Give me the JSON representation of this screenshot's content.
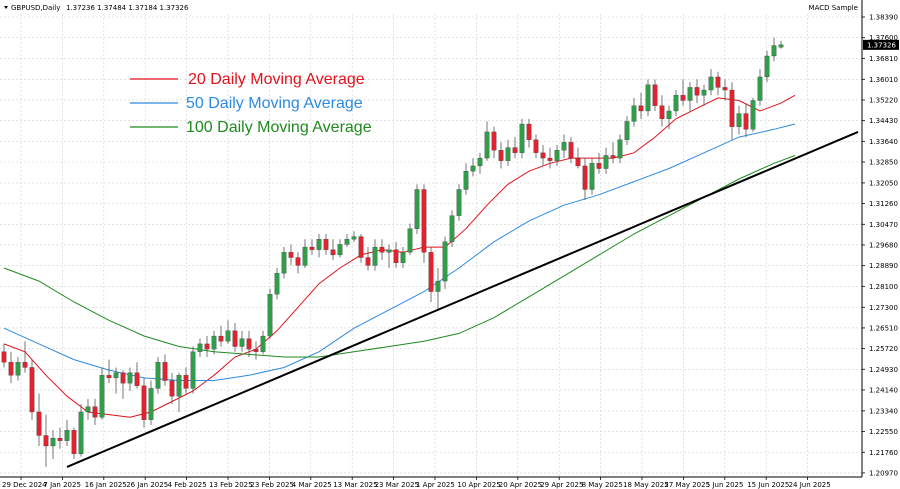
{
  "header": {
    "symbol_label": "GBPUSD,Daily",
    "ohlc": "1.37236 1.37484 1.37184 1.37326",
    "indicator": "MACD Sample"
  },
  "colors": {
    "bull": "#2e9e48",
    "bear": "#e0232f",
    "ma20": "#e2121b",
    "ma50": "#2d8be0",
    "ma100": "#1f8a1f",
    "trendline": "#000000",
    "grid": "#d0d0d0",
    "price_tag_bg": "#000000"
  },
  "chart_data": {
    "type": "candlestick",
    "title": "",
    "ylim": [
      1.207,
      1.3839
    ],
    "y_ticks": [
      "1.38390",
      "1.37600",
      "1.36810",
      "1.36010",
      "1.35220",
      "1.34430",
      "1.33640",
      "1.32850",
      "1.32050",
      "1.31260",
      "1.30470",
      "1.29680",
      "1.28890",
      "1.28100",
      "1.27300",
      "1.26510",
      "1.25720",
      "1.24930",
      "1.24140",
      "1.23340",
      "1.22550",
      "1.21760",
      "1.20970"
    ],
    "x_ticks": [
      "29 Dec 2024",
      "7 Jan 2025",
      "16 Jan 2025",
      "26 Jan 2025",
      "4 Feb 2025",
      "13 Feb 2025",
      "23 Feb 2025",
      "4 Mar 2025",
      "13 Mar 2025",
      "23 Mar 2025",
      "1 Apr 2025",
      "10 Apr 2025",
      "20 Apr 2025",
      "29 Apr 2025",
      "8 May 2025",
      "18 May 2025",
      "27 May 2025",
      "5 Jun 2025",
      "15 Jun 2025",
      "24 Jun 2025"
    ],
    "current_price": "1.37326",
    "grid": true,
    "legend_position": "top-left",
    "legend": [
      "20 Daily Moving Average",
      "50 Daily Moving Average",
      "100 Daily Moving Average"
    ],
    "candles": [
      {
        "o": 1.256,
        "h": 1.259,
        "l": 1.25,
        "c": 1.252
      },
      {
        "o": 1.252,
        "h": 1.256,
        "l": 1.244,
        "c": 1.247
      },
      {
        "o": 1.247,
        "h": 1.254,
        "l": 1.245,
        "c": 1.252
      },
      {
        "o": 1.252,
        "h": 1.26,
        "l": 1.248,
        "c": 1.25
      },
      {
        "o": 1.25,
        "h": 1.253,
        "l": 1.23,
        "c": 1.233
      },
      {
        "o": 1.233,
        "h": 1.24,
        "l": 1.22,
        "c": 1.224
      },
      {
        "o": 1.224,
        "h": 1.232,
        "l": 1.212,
        "c": 1.22
      },
      {
        "o": 1.22,
        "h": 1.226,
        "l": 1.215,
        "c": 1.223
      },
      {
        "o": 1.223,
        "h": 1.227,
        "l": 1.219,
        "c": 1.222
      },
      {
        "o": 1.222,
        "h": 1.23,
        "l": 1.22,
        "c": 1.226
      },
      {
        "o": 1.226,
        "h": 1.227,
        "l": 1.215,
        "c": 1.217
      },
      {
        "o": 1.217,
        "h": 1.236,
        "l": 1.216,
        "c": 1.233
      },
      {
        "o": 1.233,
        "h": 1.238,
        "l": 1.23,
        "c": 1.235
      },
      {
        "o": 1.235,
        "h": 1.238,
        "l": 1.228,
        "c": 1.231
      },
      {
        "o": 1.231,
        "h": 1.25,
        "l": 1.23,
        "c": 1.247
      },
      {
        "o": 1.247,
        "h": 1.253,
        "l": 1.244,
        "c": 1.246
      },
      {
        "o": 1.246,
        "h": 1.25,
        "l": 1.24,
        "c": 1.248
      },
      {
        "o": 1.248,
        "h": 1.249,
        "l": 1.238,
        "c": 1.244
      },
      {
        "o": 1.244,
        "h": 1.25,
        "l": 1.241,
        "c": 1.248
      },
      {
        "o": 1.248,
        "h": 1.252,
        "l": 1.242,
        "c": 1.243
      },
      {
        "o": 1.243,
        "h": 1.246,
        "l": 1.227,
        "c": 1.23
      },
      {
        "o": 1.23,
        "h": 1.245,
        "l": 1.228,
        "c": 1.242
      },
      {
        "o": 1.242,
        "h": 1.254,
        "l": 1.24,
        "c": 1.252
      },
      {
        "o": 1.252,
        "h": 1.255,
        "l": 1.243,
        "c": 1.245
      },
      {
        "o": 1.245,
        "h": 1.248,
        "l": 1.236,
        "c": 1.239
      },
      {
        "o": 1.239,
        "h": 1.248,
        "l": 1.233,
        "c": 1.247
      },
      {
        "o": 1.247,
        "h": 1.25,
        "l": 1.24,
        "c": 1.242
      },
      {
        "o": 1.242,
        "h": 1.258,
        "l": 1.24,
        "c": 1.256
      },
      {
        "o": 1.256,
        "h": 1.261,
        "l": 1.254,
        "c": 1.259
      },
      {
        "o": 1.259,
        "h": 1.262,
        "l": 1.254,
        "c": 1.257
      },
      {
        "o": 1.257,
        "h": 1.264,
        "l": 1.255,
        "c": 1.262
      },
      {
        "o": 1.262,
        "h": 1.266,
        "l": 1.258,
        "c": 1.26
      },
      {
        "o": 1.26,
        "h": 1.268,
        "l": 1.259,
        "c": 1.264
      },
      {
        "o": 1.264,
        "h": 1.267,
        "l": 1.256,
        "c": 1.258
      },
      {
        "o": 1.258,
        "h": 1.264,
        "l": 1.256,
        "c": 1.261
      },
      {
        "o": 1.261,
        "h": 1.264,
        "l": 1.254,
        "c": 1.257
      },
      {
        "o": 1.257,
        "h": 1.26,
        "l": 1.253,
        "c": 1.256
      },
      {
        "o": 1.256,
        "h": 1.264,
        "l": 1.255,
        "c": 1.262
      },
      {
        "o": 1.262,
        "h": 1.28,
        "l": 1.261,
        "c": 1.278
      },
      {
        "o": 1.278,
        "h": 1.288,
        "l": 1.276,
        "c": 1.286
      },
      {
        "o": 1.286,
        "h": 1.296,
        "l": 1.284,
        "c": 1.294
      },
      {
        "o": 1.294,
        "h": 1.297,
        "l": 1.289,
        "c": 1.292
      },
      {
        "o": 1.292,
        "h": 1.294,
        "l": 1.286,
        "c": 1.289
      },
      {
        "o": 1.289,
        "h": 1.299,
        "l": 1.288,
        "c": 1.296
      },
      {
        "o": 1.296,
        "h": 1.299,
        "l": 1.293,
        "c": 1.295
      },
      {
        "o": 1.295,
        "h": 1.301,
        "l": 1.292,
        "c": 1.299
      },
      {
        "o": 1.299,
        "h": 1.301,
        "l": 1.293,
        "c": 1.295
      },
      {
        "o": 1.295,
        "h": 1.299,
        "l": 1.291,
        "c": 1.293
      },
      {
        "o": 1.293,
        "h": 1.299,
        "l": 1.292,
        "c": 1.297
      },
      {
        "o": 1.297,
        "h": 1.301,
        "l": 1.296,
        "c": 1.299
      },
      {
        "o": 1.299,
        "h": 1.302,
        "l": 1.298,
        "c": 1.3
      },
      {
        "o": 1.3,
        "h": 1.301,
        "l": 1.29,
        "c": 1.292
      },
      {
        "o": 1.292,
        "h": 1.296,
        "l": 1.287,
        "c": 1.289
      },
      {
        "o": 1.289,
        "h": 1.299,
        "l": 1.287,
        "c": 1.296
      },
      {
        "o": 1.296,
        "h": 1.299,
        "l": 1.291,
        "c": 1.294
      },
      {
        "o": 1.294,
        "h": 1.297,
        "l": 1.288,
        "c": 1.295
      },
      {
        "o": 1.295,
        "h": 1.298,
        "l": 1.288,
        "c": 1.29
      },
      {
        "o": 1.29,
        "h": 1.296,
        "l": 1.288,
        "c": 1.294
      },
      {
        "o": 1.294,
        "h": 1.305,
        "l": 1.293,
        "c": 1.303
      },
      {
        "o": 1.303,
        "h": 1.32,
        "l": 1.301,
        "c": 1.318
      },
      {
        "o": 1.318,
        "h": 1.32,
        "l": 1.29,
        "c": 1.294
      },
      {
        "o": 1.294,
        "h": 1.296,
        "l": 1.275,
        "c": 1.279
      },
      {
        "o": 1.279,
        "h": 1.288,
        "l": 1.272,
        "c": 1.283
      },
      {
        "o": 1.283,
        "h": 1.3,
        "l": 1.28,
        "c": 1.298
      },
      {
        "o": 1.298,
        "h": 1.31,
        "l": 1.296,
        "c": 1.308
      },
      {
        "o": 1.308,
        "h": 1.32,
        "l": 1.306,
        "c": 1.318
      },
      {
        "o": 1.318,
        "h": 1.328,
        "l": 1.316,
        "c": 1.325
      },
      {
        "o": 1.325,
        "h": 1.33,
        "l": 1.323,
        "c": 1.327
      },
      {
        "o": 1.327,
        "h": 1.332,
        "l": 1.324,
        "c": 1.33
      },
      {
        "o": 1.33,
        "h": 1.344,
        "l": 1.329,
        "c": 1.34
      },
      {
        "o": 1.34,
        "h": 1.342,
        "l": 1.33,
        "c": 1.333
      },
      {
        "o": 1.333,
        "h": 1.336,
        "l": 1.326,
        "c": 1.329
      },
      {
        "o": 1.329,
        "h": 1.337,
        "l": 1.327,
        "c": 1.334
      },
      {
        "o": 1.334,
        "h": 1.338,
        "l": 1.33,
        "c": 1.332
      },
      {
        "o": 1.332,
        "h": 1.345,
        "l": 1.33,
        "c": 1.343
      },
      {
        "o": 1.343,
        "h": 1.345,
        "l": 1.334,
        "c": 1.337
      },
      {
        "o": 1.337,
        "h": 1.339,
        "l": 1.33,
        "c": 1.332
      },
      {
        "o": 1.332,
        "h": 1.335,
        "l": 1.327,
        "c": 1.33
      },
      {
        "o": 1.33,
        "h": 1.334,
        "l": 1.326,
        "c": 1.329
      },
      {
        "o": 1.329,
        "h": 1.335,
        "l": 1.327,
        "c": 1.333
      },
      {
        "o": 1.333,
        "h": 1.339,
        "l": 1.33,
        "c": 1.336
      },
      {
        "o": 1.336,
        "h": 1.338,
        "l": 1.328,
        "c": 1.33
      },
      {
        "o": 1.33,
        "h": 1.334,
        "l": 1.326,
        "c": 1.327
      },
      {
        "o": 1.327,
        "h": 1.33,
        "l": 1.314,
        "c": 1.318
      },
      {
        "o": 1.318,
        "h": 1.33,
        "l": 1.316,
        "c": 1.328
      },
      {
        "o": 1.328,
        "h": 1.332,
        "l": 1.324,
        "c": 1.326
      },
      {
        "o": 1.326,
        "h": 1.334,
        "l": 1.324,
        "c": 1.331
      },
      {
        "o": 1.331,
        "h": 1.336,
        "l": 1.328,
        "c": 1.33
      },
      {
        "o": 1.33,
        "h": 1.339,
        "l": 1.328,
        "c": 1.337
      },
      {
        "o": 1.337,
        "h": 1.346,
        "l": 1.335,
        "c": 1.344
      },
      {
        "o": 1.344,
        "h": 1.353,
        "l": 1.342,
        "c": 1.35
      },
      {
        "o": 1.35,
        "h": 1.355,
        "l": 1.345,
        "c": 1.348
      },
      {
        "o": 1.348,
        "h": 1.36,
        "l": 1.346,
        "c": 1.358
      },
      {
        "o": 1.358,
        "h": 1.36,
        "l": 1.348,
        "c": 1.35
      },
      {
        "o": 1.35,
        "h": 1.354,
        "l": 1.342,
        "c": 1.345
      },
      {
        "o": 1.345,
        "h": 1.35,
        "l": 1.341,
        "c": 1.348
      },
      {
        "o": 1.348,
        "h": 1.356,
        "l": 1.346,
        "c": 1.354
      },
      {
        "o": 1.354,
        "h": 1.36,
        "l": 1.35,
        "c": 1.352
      },
      {
        "o": 1.352,
        "h": 1.359,
        "l": 1.348,
        "c": 1.357
      },
      {
        "o": 1.357,
        "h": 1.36,
        "l": 1.351,
        "c": 1.354
      },
      {
        "o": 1.354,
        "h": 1.358,
        "l": 1.35,
        "c": 1.356
      },
      {
        "o": 1.356,
        "h": 1.364,
        "l": 1.354,
        "c": 1.361
      },
      {
        "o": 1.361,
        "h": 1.363,
        "l": 1.354,
        "c": 1.357
      },
      {
        "o": 1.357,
        "h": 1.36,
        "l": 1.352,
        "c": 1.356
      },
      {
        "o": 1.356,
        "h": 1.359,
        "l": 1.337,
        "c": 1.342
      },
      {
        "o": 1.342,
        "h": 1.35,
        "l": 1.339,
        "c": 1.347
      },
      {
        "o": 1.347,
        "h": 1.351,
        "l": 1.338,
        "c": 1.341
      },
      {
        "o": 1.341,
        "h": 1.353,
        "l": 1.34,
        "c": 1.352
      },
      {
        "o": 1.352,
        "h": 1.364,
        "l": 1.35,
        "c": 1.361
      },
      {
        "o": 1.361,
        "h": 1.371,
        "l": 1.359,
        "c": 1.369
      },
      {
        "o": 1.369,
        "h": 1.376,
        "l": 1.367,
        "c": 1.373
      },
      {
        "o": 1.37236,
        "h": 1.37484,
        "l": 1.37184,
        "c": 1.37326
      }
    ],
    "series": [
      {
        "name": "20 Daily Moving Average",
        "values": [
          [
            0,
            1.259
          ],
          [
            3,
            1.256
          ],
          [
            6,
            1.247
          ],
          [
            9,
            1.239
          ],
          [
            12,
            1.233
          ],
          [
            15,
            1.232
          ],
          [
            18,
            1.231
          ],
          [
            21,
            1.233
          ],
          [
            24,
            1.237
          ],
          [
            27,
            1.241
          ],
          [
            30,
            1.247
          ],
          [
            33,
            1.254
          ],
          [
            36,
            1.257
          ],
          [
            39,
            1.264
          ],
          [
            42,
            1.273
          ],
          [
            45,
            1.282
          ],
          [
            48,
            1.288
          ],
          [
            51,
            1.293
          ],
          [
            54,
            1.295
          ],
          [
            57,
            1.294
          ],
          [
            60,
            1.296
          ],
          [
            63,
            1.296
          ],
          [
            66,
            1.303
          ],
          [
            69,
            1.312
          ],
          [
            72,
            1.32
          ],
          [
            75,
            1.325
          ],
          [
            78,
            1.328
          ],
          [
            81,
            1.33
          ],
          [
            84,
            1.33
          ],
          [
            87,
            1.33
          ],
          [
            90,
            1.332
          ],
          [
            93,
            1.338
          ],
          [
            96,
            1.345
          ],
          [
            99,
            1.349
          ],
          [
            102,
            1.353
          ],
          [
            105,
            1.352
          ],
          [
            108,
            1.348
          ],
          [
            111,
            1.351
          ],
          [
            113,
            1.354
          ]
        ]
      },
      {
        "name": "50 Daily Moving Average",
        "values": [
          [
            0,
            1.265
          ],
          [
            5,
            1.259
          ],
          [
            10,
            1.253
          ],
          [
            15,
            1.249
          ],
          [
            20,
            1.246
          ],
          [
            25,
            1.245
          ],
          [
            30,
            1.245
          ],
          [
            35,
            1.247
          ],
          [
            40,
            1.25
          ],
          [
            45,
            1.256
          ],
          [
            50,
            1.265
          ],
          [
            55,
            1.272
          ],
          [
            60,
            1.279
          ],
          [
            65,
            1.288
          ],
          [
            70,
            1.298
          ],
          [
            75,
            1.306
          ],
          [
            80,
            1.312
          ],
          [
            85,
            1.316
          ],
          [
            90,
            1.321
          ],
          [
            95,
            1.326
          ],
          [
            100,
            1.332
          ],
          [
            105,
            1.338
          ],
          [
            110,
            1.341
          ],
          [
            113,
            1.343
          ]
        ]
      },
      {
        "name": "100 Daily Moving Average",
        "values": [
          [
            0,
            1.288
          ],
          [
            5,
            1.283
          ],
          [
            10,
            1.275
          ],
          [
            15,
            1.268
          ],
          [
            20,
            1.262
          ],
          [
            25,
            1.258
          ],
          [
            30,
            1.256
          ],
          [
            35,
            1.255
          ],
          [
            40,
            1.254
          ],
          [
            45,
            1.254
          ],
          [
            50,
            1.256
          ],
          [
            55,
            1.258
          ],
          [
            60,
            1.26
          ],
          [
            65,
            1.263
          ],
          [
            70,
            1.269
          ],
          [
            75,
            1.277
          ],
          [
            80,
            1.285
          ],
          [
            85,
            1.293
          ],
          [
            90,
            1.301
          ],
          [
            95,
            1.308
          ],
          [
            100,
            1.315
          ],
          [
            105,
            1.322
          ],
          [
            110,
            1.328
          ],
          [
            113,
            1.331
          ]
        ]
      }
    ],
    "trendline": {
      "from": [
        9,
        1.212
      ],
      "to": [
        122,
        1.34
      ]
    }
  }
}
